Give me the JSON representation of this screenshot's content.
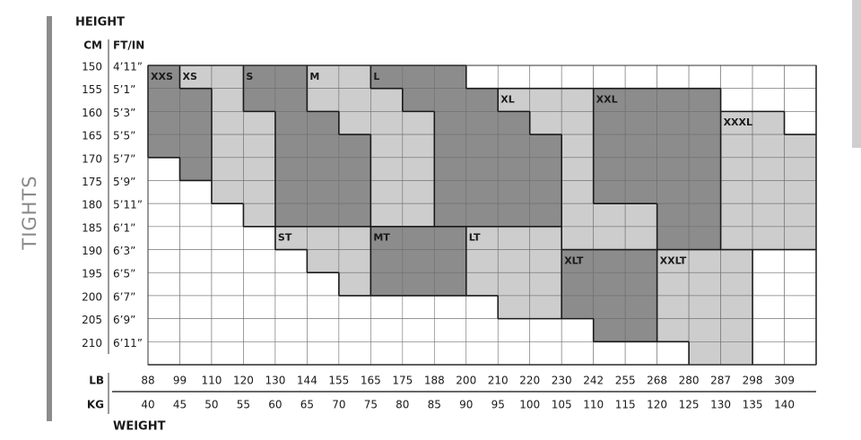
{
  "title": "TIGHTS",
  "height_label": "HEIGHT",
  "cm_label": "CM",
  "ftin_label": "FT/IN",
  "heights": [
    {
      "cm": 150,
      "ft": "4’11”"
    },
    {
      "cm": 155,
      "ft": "5’1”"
    },
    {
      "cm": 160,
      "ft": "5’3”"
    },
    {
      "cm": 165,
      "ft": "5’5”"
    },
    {
      "cm": 170,
      "ft": "5’7”"
    },
    {
      "cm": 175,
      "ft": "5’9”"
    },
    {
      "cm": 180,
      "ft": "5’11”"
    },
    {
      "cm": 185,
      "ft": "6’1”"
    },
    {
      "cm": 190,
      "ft": "6’3”"
    },
    {
      "cm": 195,
      "ft": "6’5”"
    },
    {
      "cm": 200,
      "ft": "6’7”"
    },
    {
      "cm": 205,
      "ft": "6’9”"
    },
    {
      "cm": 210,
      "ft": "6’11”"
    }
  ],
  "lb_label": "LB",
  "kg_label": "KG",
  "weight_label": "WEIGHT",
  "lb": [
    88,
    99,
    110,
    120,
    130,
    144,
    155,
    165,
    175,
    188,
    200,
    210,
    220,
    230,
    242,
    255,
    268,
    280,
    287,
    298,
    309
  ],
  "kg": [
    40,
    45,
    50,
    55,
    60,
    65,
    70,
    75,
    80,
    85,
    90,
    95,
    100,
    105,
    110,
    115,
    120,
    125,
    130,
    135,
    140
  ],
  "sizes": [
    "XXS",
    "XS",
    "S",
    "M",
    "L",
    "XL",
    "XXL",
    "XXXL",
    "ST",
    "MT",
    "LT",
    "XLT",
    "XXLT"
  ]
}
